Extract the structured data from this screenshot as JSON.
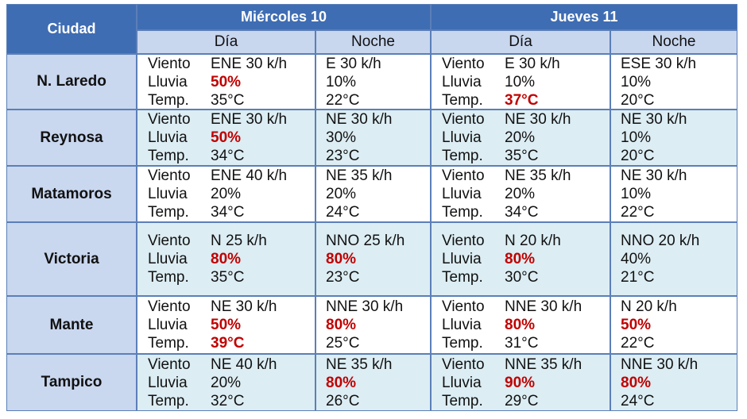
{
  "table": {
    "header": {
      "city": "Ciudad",
      "days": [
        "Miércoles 10",
        "Jueves 11"
      ],
      "periods": [
        "Día",
        "Noche"
      ]
    },
    "labels": [
      "Viento",
      "Lluvia",
      "Temp."
    ],
    "highlight_color": "#c00000",
    "rows": [
      {
        "city": "N. Laredo",
        "cells": [
          {
            "wind": "ENE 30 k/h",
            "rain": "50%",
            "temp": "35°C",
            "highlight": [
              "rain"
            ]
          },
          {
            "wind": "E 30 k/h",
            "rain": "10%",
            "temp": "22°C",
            "highlight": []
          },
          {
            "wind": "E 30 k/h",
            "rain": "10%",
            "temp": "37°C",
            "highlight": [
              "temp"
            ]
          },
          {
            "wind": "ESE 30 k/h",
            "rain": "10%",
            "temp": "20°C",
            "highlight": []
          }
        ]
      },
      {
        "city": "Reynosa",
        "cells": [
          {
            "wind": "ENE 30 k/h",
            "rain": "50%",
            "temp": "34°C",
            "highlight": [
              "rain"
            ]
          },
          {
            "wind": "NE 30 k/h",
            "rain": "30%",
            "temp": "23°C",
            "highlight": []
          },
          {
            "wind": "NE 30 k/h",
            "rain": "20%",
            "temp": "35°C",
            "highlight": []
          },
          {
            "wind": "NE 30 k/h",
            "rain": "10%",
            "temp": "20°C",
            "highlight": []
          }
        ]
      },
      {
        "city": "Matamoros",
        "cells": [
          {
            "wind": "ENE 40 k/h",
            "rain": "20%",
            "temp": "34°C",
            "highlight": []
          },
          {
            "wind": "NE 35 k/h",
            "rain": "20%",
            "temp": "24°C",
            "highlight": []
          },
          {
            "wind": "NE 35 k/h",
            "rain": "20%",
            "temp": "34°C",
            "highlight": []
          },
          {
            "wind": "NE 30 k/h",
            "rain": "10%",
            "temp": "22°C",
            "highlight": []
          }
        ]
      },
      {
        "city": "Victoria",
        "cells": [
          {
            "wind": "N 25 k/h",
            "rain": "80%",
            "temp": "35°C",
            "highlight": [
              "rain"
            ]
          },
          {
            "wind": "NNO 25 k/h",
            "rain": "80%",
            "temp": "23°C",
            "highlight": [
              "rain"
            ]
          },
          {
            "wind": "N 20 k/h",
            "rain": "80%",
            "temp": "30°C",
            "highlight": [
              "rain"
            ]
          },
          {
            "wind": "NNO 20 k/h",
            "rain": "40%",
            "temp": "21°C",
            "highlight": []
          }
        ]
      },
      {
        "city": "Mante",
        "cells": [
          {
            "wind": "NE 30 k/h",
            "rain": "50%",
            "temp": "39°C",
            "highlight": [
              "rain",
              "temp"
            ]
          },
          {
            "wind": "NNE 30 k/h",
            "rain": "80%",
            "temp": "25°C",
            "highlight": [
              "rain"
            ]
          },
          {
            "wind": "NNE 30 k/h",
            "rain": "80%",
            "temp": "31°C",
            "highlight": [
              "rain"
            ]
          },
          {
            "wind": "N 20 k/h",
            "rain": "50%",
            "temp": "22°C",
            "highlight": [
              "rain"
            ]
          }
        ]
      },
      {
        "city": "Tampico",
        "cells": [
          {
            "wind": "NE 40 k/h",
            "rain": "20%",
            "temp": "32°C",
            "highlight": []
          },
          {
            "wind": "NE 35 k/h",
            "rain": "80%",
            "temp": "26°C",
            "highlight": [
              "rain"
            ]
          },
          {
            "wind": "NNE 35 k/h",
            "rain": "90%",
            "temp": "29°C",
            "highlight": [
              "rain"
            ]
          },
          {
            "wind": "NNE 30 k/h",
            "rain": "80%",
            "temp": "24°C",
            "highlight": [
              "rain"
            ]
          }
        ]
      }
    ]
  }
}
